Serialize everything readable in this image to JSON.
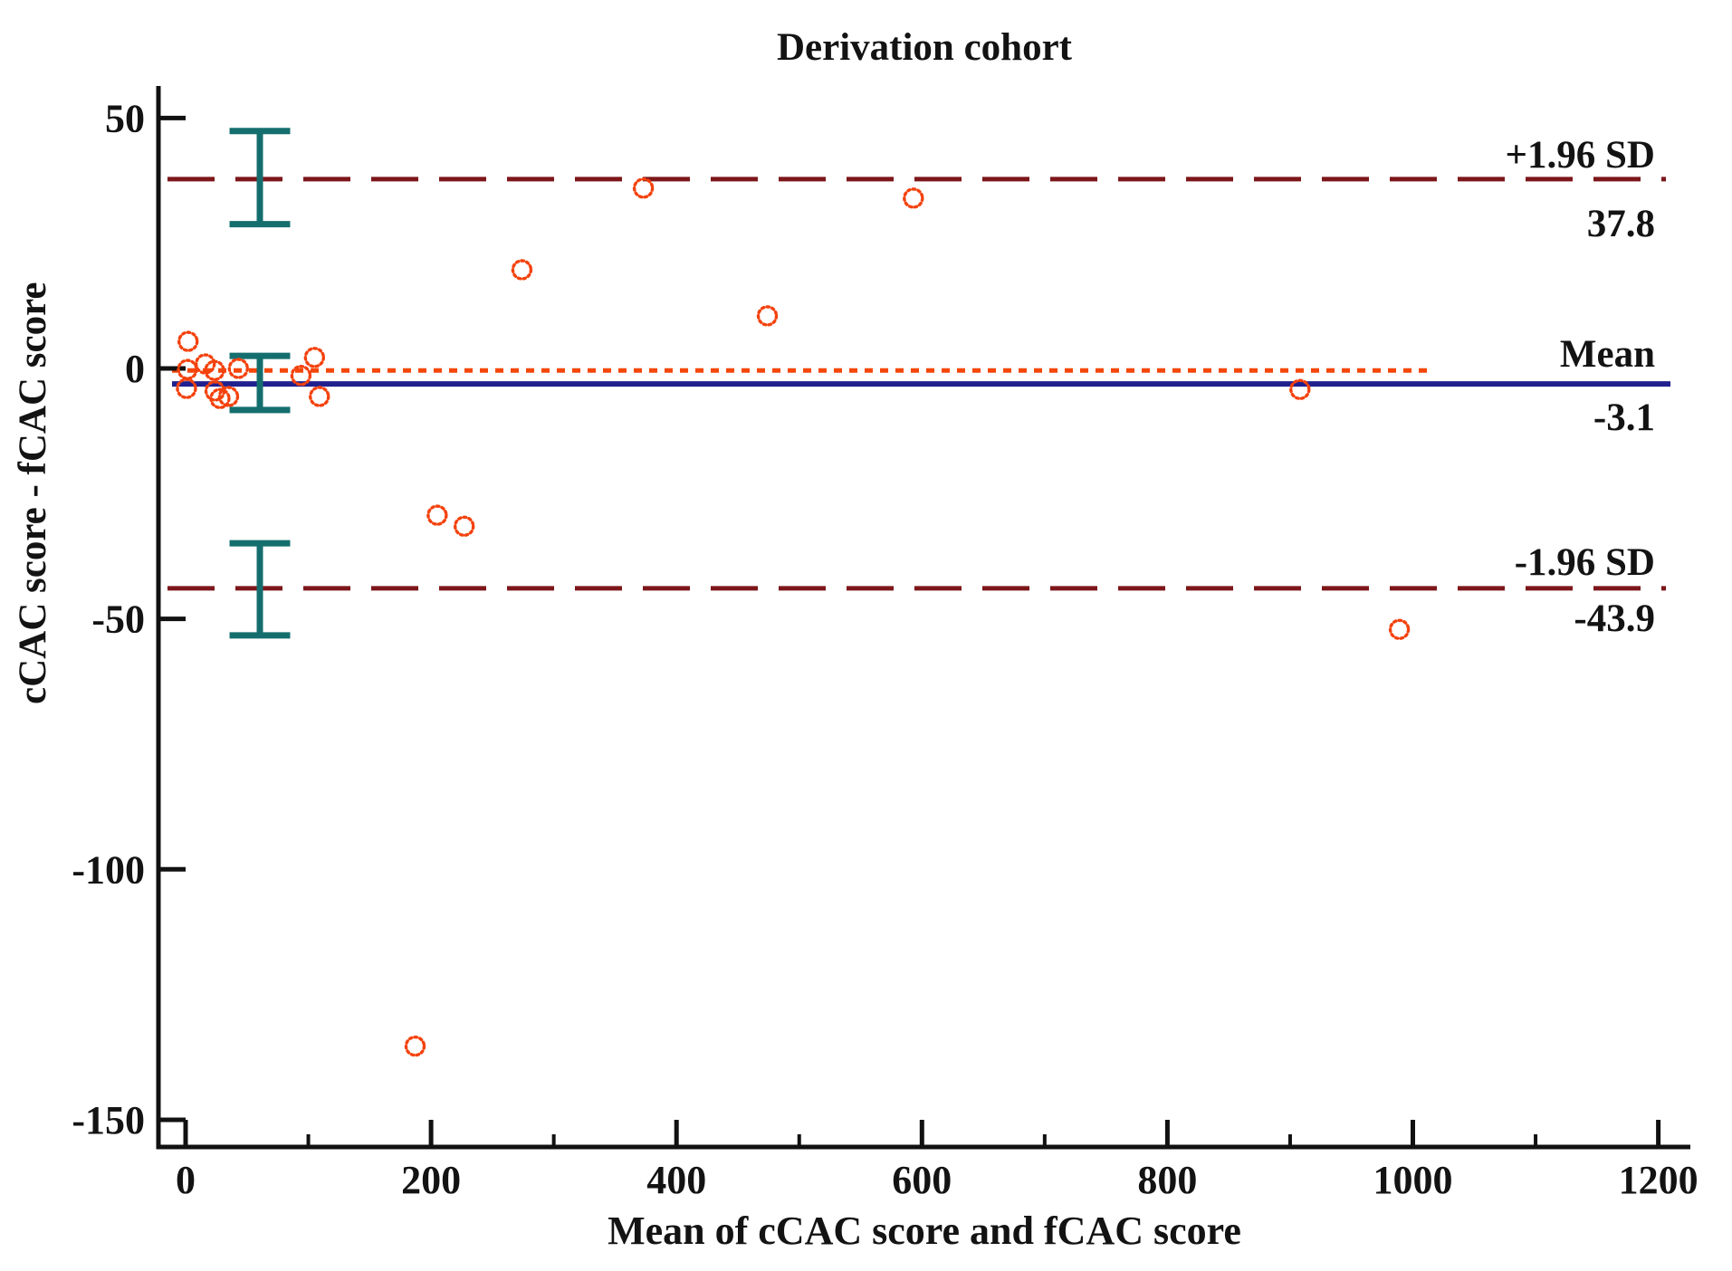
{
  "chart_data": {
    "type": "scatter",
    "subtype": "bland-altman",
    "title": "Derivation cohort",
    "xlabel": "Mean of cCAC score and fCAC score",
    "ylabel": "cCAC score - fCAC score",
    "xlim": [
      0,
      1200
    ],
    "ylim": [
      -150,
      50
    ],
    "grid": false,
    "legend": "none",
    "x_ticks_major": [
      0,
      200,
      400,
      600,
      800,
      1000,
      1200
    ],
    "x_tick_labels": [
      "0",
      "200",
      "400",
      "600",
      "800",
      "1000",
      "1200"
    ],
    "x_ticks_minor": [
      100,
      300,
      500,
      700,
      900,
      1100
    ],
    "y_ticks_major": [
      50,
      0,
      -50,
      -100,
      -150
    ],
    "y_tick_labels": [
      "50",
      "0",
      "-50",
      "-100",
      "-150"
    ],
    "points": [
      [
        2,
        5.4
      ],
      [
        1.5,
        -0.2
      ],
      [
        0.7,
        -4.0
      ],
      [
        16,
        0.9
      ],
      [
        23.6,
        -0.4
      ],
      [
        24,
        -4.5
      ],
      [
        28,
        -6.0
      ],
      [
        43,
        0.0
      ],
      [
        35,
        -5.6
      ],
      [
        105,
        2.2
      ],
      [
        94,
        -1.4
      ],
      [
        109,
        -5.6
      ],
      [
        205,
        -29.3
      ],
      [
        227,
        -31.5
      ],
      [
        187,
        -135.3
      ],
      [
        274,
        19.7
      ],
      [
        373,
        36.0
      ],
      [
        474,
        10.5
      ],
      [
        593,
        34.0
      ],
      [
        908,
        -4.2
      ],
      [
        989,
        -52.1
      ]
    ],
    "marker": {
      "shape": "dotted-circle-ring",
      "color": "#f4420d",
      "radius_px": 10
    },
    "reference_lines": {
      "upper_loa": {
        "label": "+1.96 SD",
        "value": 37.8,
        "value_text": "37.8",
        "style": "dashed",
        "color": "#7d171a"
      },
      "mean": {
        "label": "Mean",
        "value": -3.1,
        "value_text": "-3.1",
        "style": "solid",
        "color": "#20218f"
      },
      "zero": {
        "label": "",
        "value": -0.4,
        "value_text": "",
        "style": "dotted",
        "color": "#f44708"
      },
      "lower_loa": {
        "label": "-1.96 SD",
        "value": -43.9,
        "value_text": "-43.9",
        "style": "dashed",
        "color": "#7d171a"
      }
    },
    "ci_error_bars": {
      "color": "#156e6e",
      "x_center": 60.5,
      "cap_half_width": 24.7,
      "bars": [
        {
          "lo": 28.8,
          "hi": 47.4
        },
        {
          "lo": -8.3,
          "hi": 2.5
        },
        {
          "lo": -53.3,
          "hi": -34.9
        }
      ]
    },
    "colors": {
      "axis": "#111111",
      "text": "#131313",
      "background": "#ffffff"
    }
  }
}
